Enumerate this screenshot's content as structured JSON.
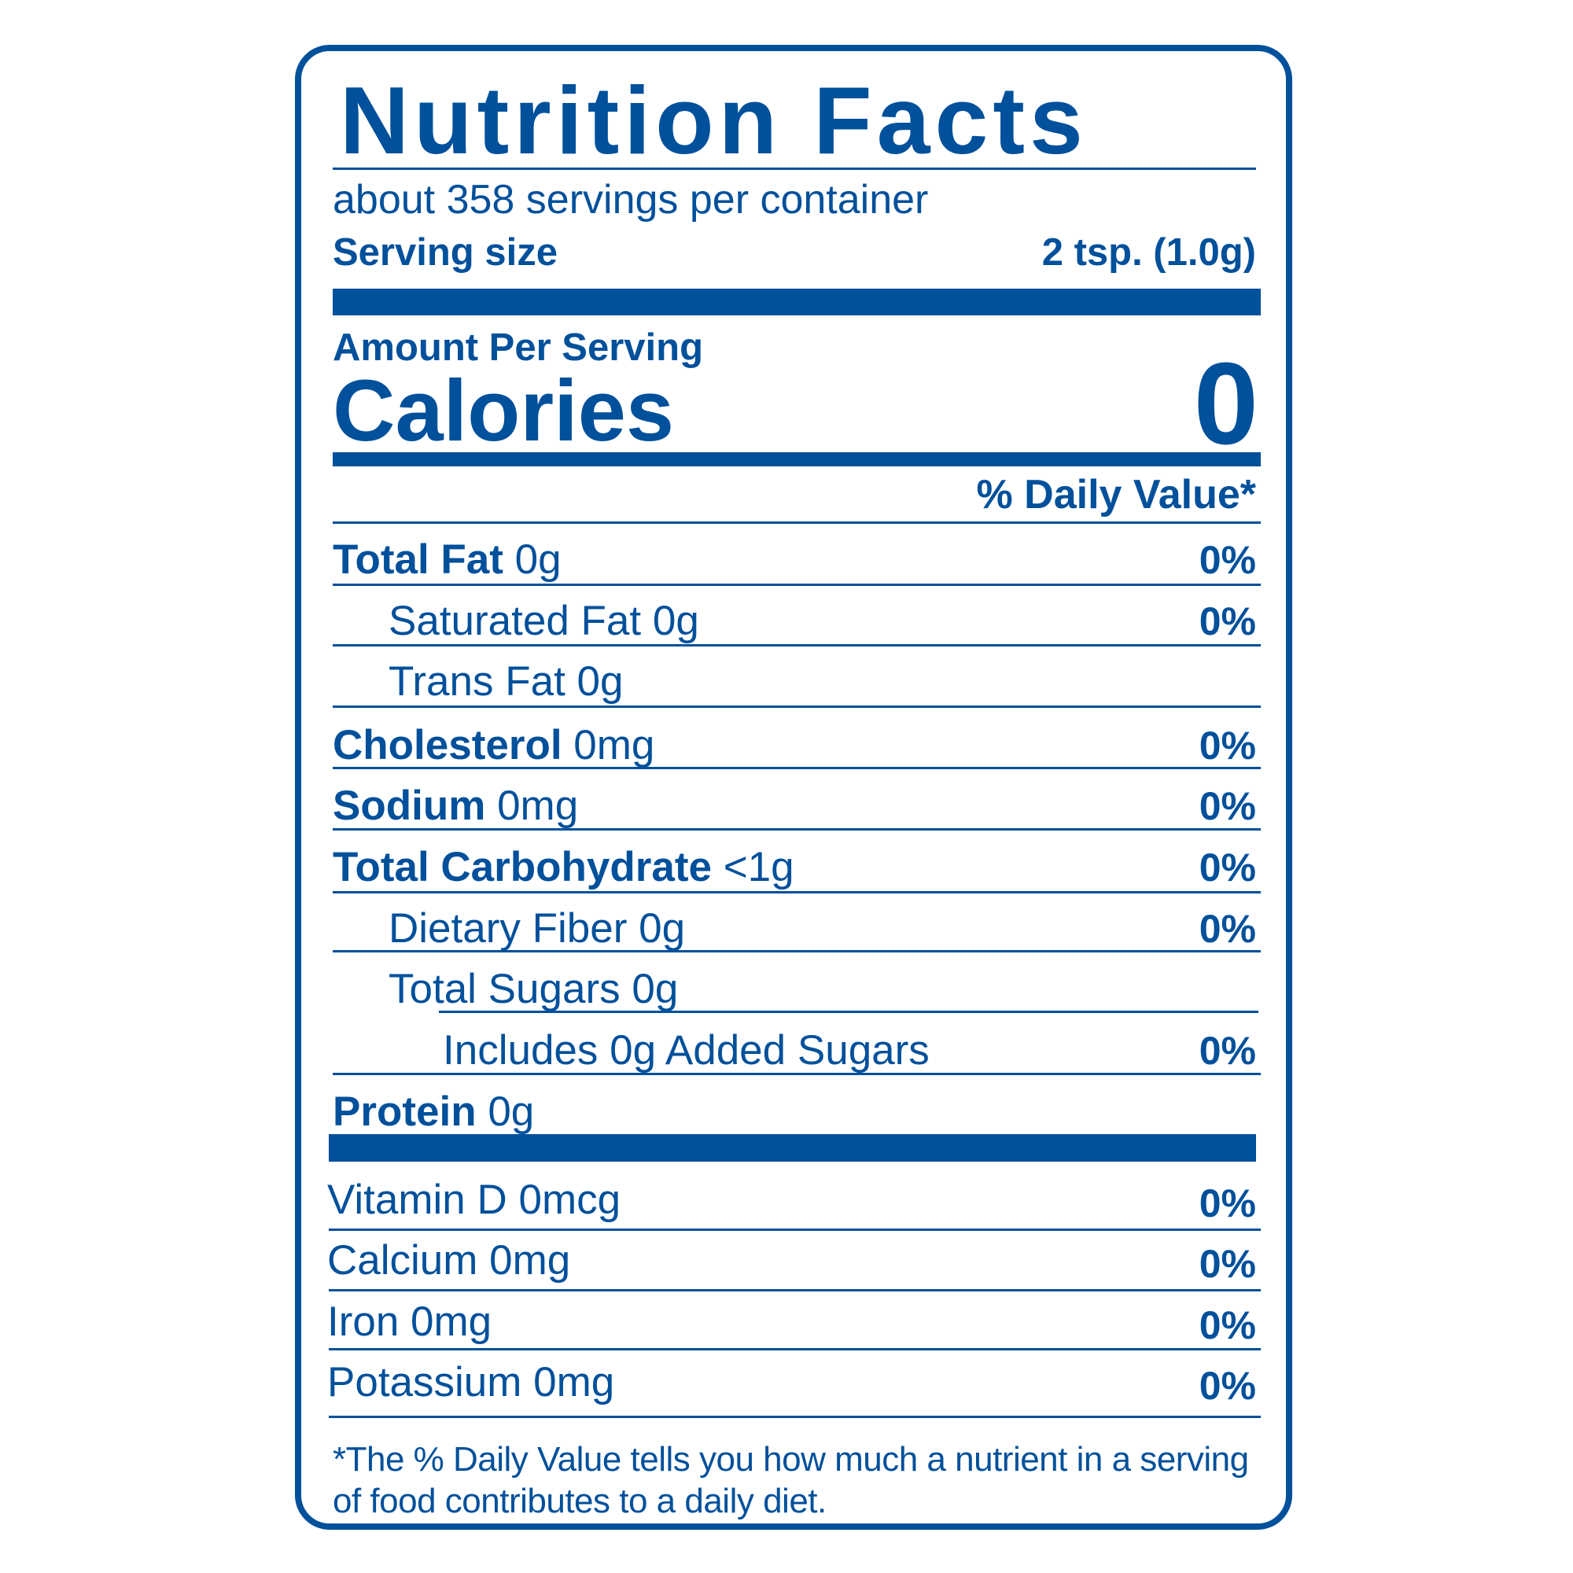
{
  "title": "Nutrition Facts",
  "servings_per_container": "about 358 servings per container",
  "serving_size": {
    "label": "Serving size",
    "value": "2 tsp. (1.0g)"
  },
  "amount_per_serving": "Amount Per Serving",
  "calories": {
    "label": "Calories",
    "value": "0"
  },
  "daily_value_header": "% Daily Value*",
  "nutrients": [
    {
      "name": "Total Fat",
      "amount": "0g",
      "dv": "0%"
    },
    {
      "name": "Saturated Fat",
      "amount": "0g",
      "dv": "0%"
    },
    {
      "name": "Trans Fat",
      "amount": "0g",
      "dv": ""
    },
    {
      "name": "Cholesterol",
      "amount": "0mg",
      "dv": "0%"
    },
    {
      "name": "Sodium",
      "amount": "0mg",
      "dv": "0%"
    },
    {
      "name": "Total Carbohydrate",
      "amount": "<1g",
      "dv": "0%"
    },
    {
      "name": "Dietary Fiber",
      "amount": "0g",
      "dv": "0%"
    },
    {
      "name": "Total Sugars",
      "amount": "0g",
      "dv": ""
    },
    {
      "name": "Includes 0g Added Sugars",
      "amount": "",
      "dv": "0%"
    },
    {
      "name": "Protein",
      "amount": "0g",
      "dv": ""
    }
  ],
  "vitamins": [
    {
      "name": "Vitamin D 0mcg",
      "dv": "0%"
    },
    {
      "name": "Calcium 0mg",
      "dv": "0%"
    },
    {
      "name": "Iron 0mg",
      "dv": "0%"
    },
    {
      "name": "Potassium 0mg",
      "dv": "0%"
    }
  ],
  "footnote": "*The % Daily Value tells you how much a nutrient in a serving of food contributes to a daily diet.",
  "colors": {
    "ink": "#00509b",
    "background": "#ffffff"
  }
}
